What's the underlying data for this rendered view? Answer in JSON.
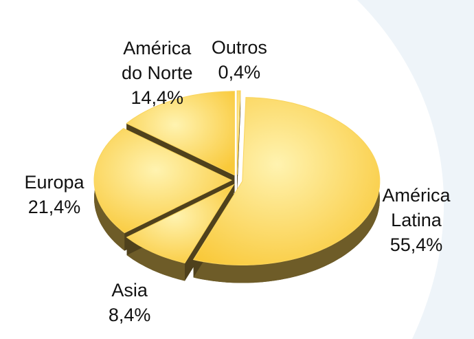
{
  "chart_data": {
    "type": "pie",
    "categories": [
      "Outros",
      "América Latina",
      "Asia",
      "Europa",
      "América do Norte"
    ],
    "values": [
      0.4,
      55.4,
      8.4,
      21.4,
      14.4
    ],
    "value_labels": [
      "0,4%",
      "55,4%",
      "8,4%",
      "21,4%",
      "14,4%"
    ],
    "color": "#f9d45c"
  }
}
